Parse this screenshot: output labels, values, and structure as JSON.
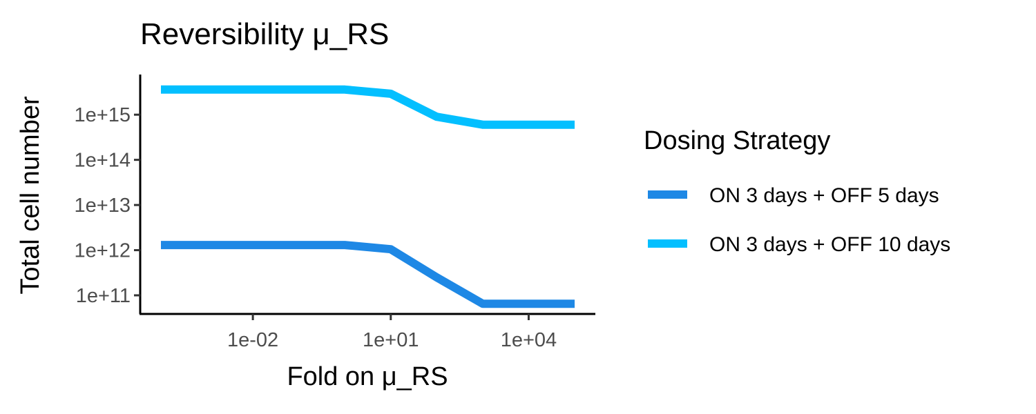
{
  "chart_data": {
    "type": "line",
    "title": "Reversibility  μ_RS",
    "xlabel": "Fold on  μ_RS",
    "ylabel": "Total cell number",
    "x_scale": "log10",
    "y_scale": "log10",
    "xlim": [
      0.0001,
      100000
    ],
    "ylim": [
      50000000000,
      7000000000000000
    ],
    "x_ticks": [
      {
        "value": 0.01,
        "label": "1e-02"
      },
      {
        "value": 10,
        "label": "1e+01"
      },
      {
        "value": 10000,
        "label": "1e+04"
      }
    ],
    "y_ticks": [
      {
        "value": 100000000000,
        "label": "1e+11"
      },
      {
        "value": 1000000000000,
        "label": "1e+12"
      },
      {
        "value": 10000000000000,
        "label": "1e+13"
      },
      {
        "value": 100000000000000,
        "label": "1e+14"
      },
      {
        "value": 1000000000000000,
        "label": "1e+15"
      }
    ],
    "legend_title": "Dosing Strategy",
    "legend_position": "right",
    "grid": false,
    "series": [
      {
        "name": "ON 3 days + OFF 5 days",
        "color": "#1e88e5",
        "points": [
          {
            "x": 0.0001,
            "y": 1300000000000
          },
          {
            "x": 1,
            "y": 1300000000000
          },
          {
            "x": 10,
            "y": 1050000000000
          },
          {
            "x": 100,
            "y": 250000000000
          },
          {
            "x": 1000,
            "y": 65000000000
          },
          {
            "x": 100000,
            "y": 65000000000
          }
        ]
      },
      {
        "name": "ON 3 days + OFF 10 days",
        "color": "#03bfff",
        "points": [
          {
            "x": 0.0001,
            "y": 3600000000000000
          },
          {
            "x": 1,
            "y": 3600000000000000
          },
          {
            "x": 10,
            "y": 2900000000000000
          },
          {
            "x": 100,
            "y": 900000000000000
          },
          {
            "x": 1000,
            "y": 600000000000000
          },
          {
            "x": 100000,
            "y": 600000000000000
          }
        ]
      }
    ]
  }
}
